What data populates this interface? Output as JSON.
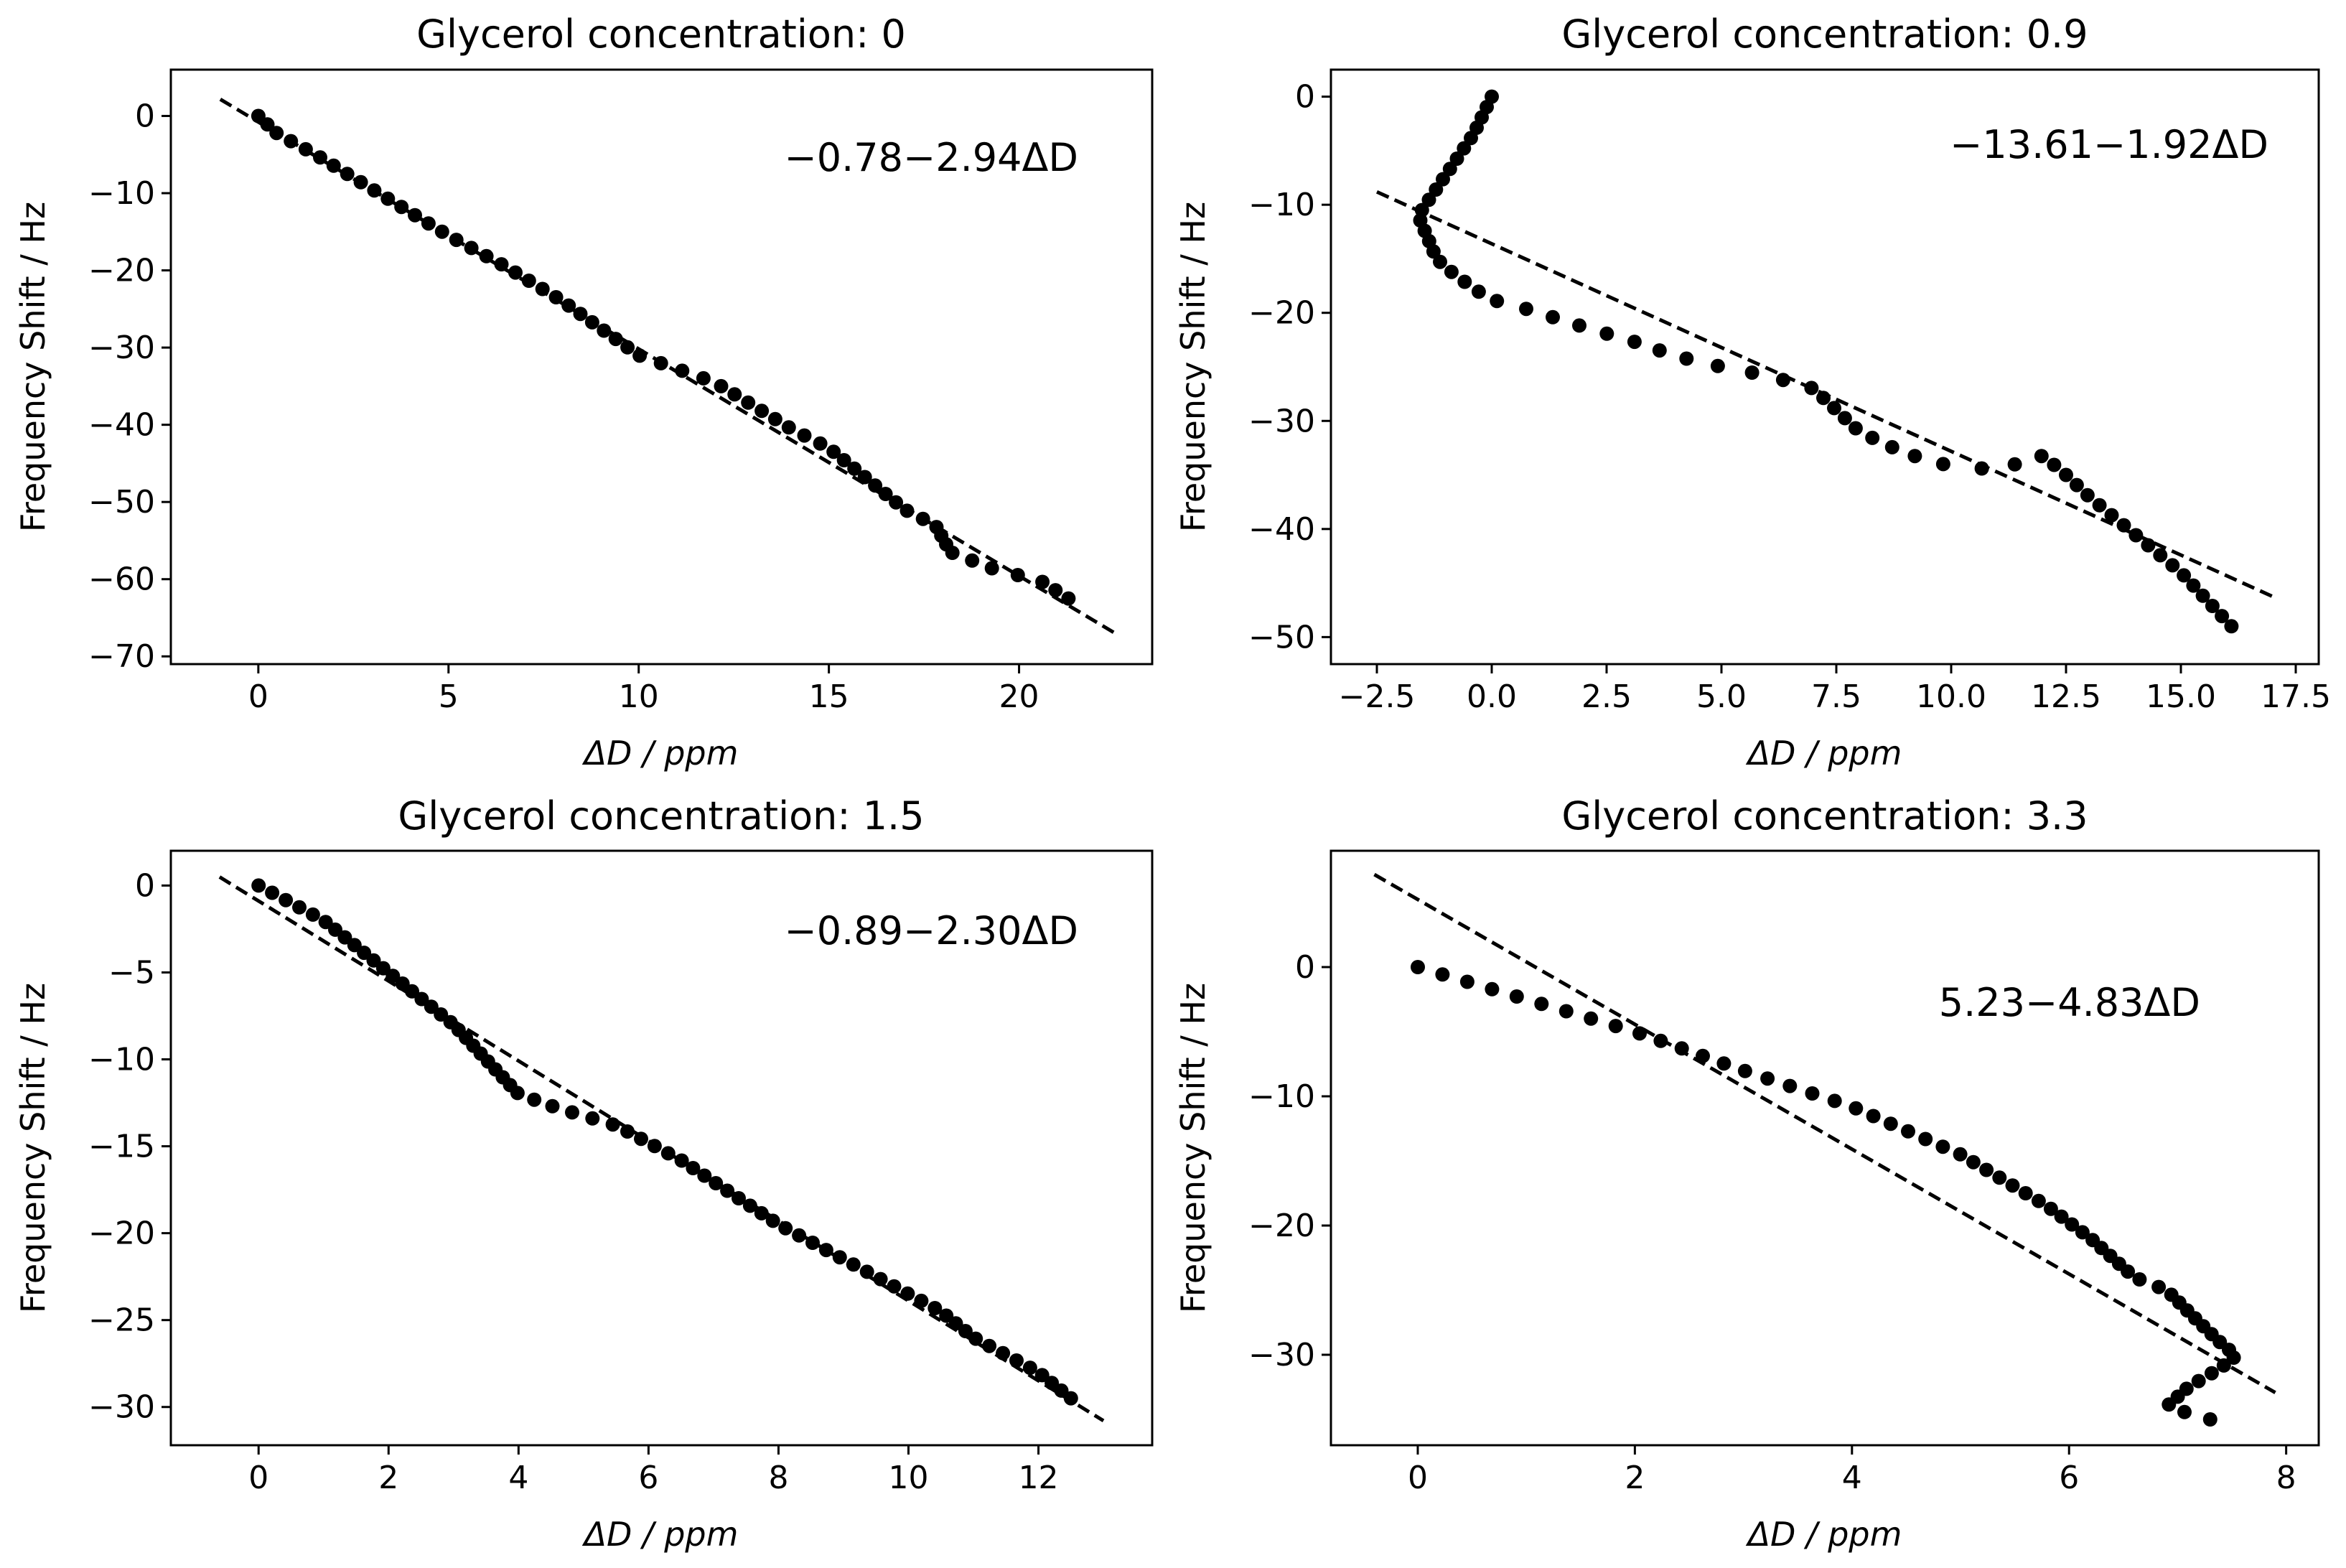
{
  "chart_data": [
    {
      "type": "scatter",
      "title": "Glycerol concentration: 0",
      "xlabel": "ΔD / ppm",
      "ylabel": "Frequency Shift / Hz",
      "annotation": "−0.78−2.94ΔD",
      "annotation_position": "top-right",
      "xlim": [
        -2.3,
        23.5
      ],
      "ylim": [
        -71,
        6
      ],
      "xticks": [
        0,
        5,
        10,
        15,
        20
      ],
      "xtick_labels": [
        "0",
        "5",
        "10",
        "15",
        "20"
      ],
      "yticks": [
        0,
        -10,
        -20,
        -30,
        -40,
        -50,
        -60,
        -70
      ],
      "ytick_labels": [
        "0",
        "−10",
        "−20",
        "−30",
        "−40",
        "−50",
        "−60",
        "−70"
      ],
      "fit": {
        "intercept": -0.78,
        "slope": -2.94,
        "x_range": [
          -1.0,
          22.5
        ]
      },
      "series": [
        {
          "name": "data",
          "anchors": [
            [
              0,
              0
            ],
            [
              0.5,
              -2.3
            ],
            [
              1.5,
              -5
            ],
            [
              2.5,
              -8
            ],
            [
              3.5,
              -11
            ],
            [
              5,
              -15.5
            ],
            [
              6.5,
              -19.5
            ],
            [
              8,
              -24
            ],
            [
              10,
              -31
            ],
            [
              12,
              -34.5
            ],
            [
              14,
              -40.5
            ],
            [
              15,
              -43
            ],
            [
              16,
              -47
            ],
            [
              17,
              -51
            ],
            [
              17.8,
              -53
            ],
            [
              18.2,
              -56.5
            ],
            [
              19.5,
              -59
            ],
            [
              20.5,
              -60
            ],
            [
              21.3,
              -62.5
            ]
          ],
          "count": 60
        }
      ]
    },
    {
      "type": "scatter",
      "title": "Glycerol concentration: 0.9",
      "xlabel": "ΔD / ppm",
      "ylabel": "Frequency Shift / Hz",
      "annotation": "−13.61−1.92ΔD",
      "annotation_position": "top-right",
      "xlim": [
        -3.5,
        18.0
      ],
      "ylim": [
        -52.5,
        2.5
      ],
      "xticks": [
        -2.5,
        0.0,
        2.5,
        5.0,
        7.5,
        10.0,
        12.5,
        15.0,
        17.5
      ],
      "xtick_labels": [
        "−2.5",
        "0.0",
        "2.5",
        "5.0",
        "7.5",
        "10.0",
        "12.5",
        "15.0",
        "17.5"
      ],
      "yticks": [
        0,
        -10,
        -20,
        -30,
        -40,
        -50
      ],
      "ytick_labels": [
        "0",
        "−10",
        "−20",
        "−30",
        "−40",
        "−50"
      ],
      "fit": {
        "intercept": -13.61,
        "slope": -1.92,
        "x_range": [
          -2.5,
          17.0
        ]
      },
      "series": [
        {
          "name": "data",
          "anchors": [
            [
              0,
              0
            ],
            [
              -0.4,
              -3.5
            ],
            [
              -0.8,
              -6
            ],
            [
              -1.2,
              -8.5
            ],
            [
              -1.6,
              -11
            ],
            [
              -1.4,
              -13
            ],
            [
              -1.2,
              -15
            ],
            [
              -0.8,
              -16.5
            ],
            [
              -0.3,
              -18
            ],
            [
              0,
              -18.8
            ],
            [
              0.5,
              -19.3
            ],
            [
              2,
              -21.3
            ],
            [
              3.2,
              -22.8
            ],
            [
              4,
              -24
            ],
            [
              5,
              -25
            ],
            [
              6,
              -25.8
            ],
            [
              7,
              -27
            ],
            [
              8,
              -31
            ],
            [
              9,
              -33
            ],
            [
              10,
              -34.2
            ],
            [
              11,
              -34.5
            ],
            [
              11.8,
              -33.5
            ],
            [
              12.0,
              -33.2
            ],
            [
              12.5,
              -35
            ],
            [
              13,
              -37
            ],
            [
              14,
              -40.5
            ],
            [
              15,
              -44
            ],
            [
              16.1,
              -49
            ]
          ],
          "count": 60
        }
      ]
    },
    {
      "type": "scatter",
      "title": "Glycerol concentration: 1.5",
      "xlabel": "ΔD / ppm",
      "ylabel": "Frequency Shift / Hz",
      "annotation": "−0.89−2.30ΔD",
      "annotation_position": "top-right",
      "xlim": [
        -1.35,
        13.75
      ],
      "ylim": [
        -32.2,
        2.0
      ],
      "xticks": [
        0,
        2,
        4,
        6,
        8,
        10,
        12
      ],
      "xtick_labels": [
        "0",
        "2",
        "4",
        "6",
        "8",
        "10",
        "12"
      ],
      "yticks": [
        0,
        -5,
        -10,
        -15,
        -20,
        -25,
        -30
      ],
      "ytick_labels": [
        "0",
        "−5",
        "−10",
        "−15",
        "−20",
        "−25",
        "−30"
      ],
      "fit": {
        "intercept": -0.89,
        "slope": -2.3,
        "x_range": [
          -0.6,
          13.0
        ]
      },
      "series": [
        {
          "name": "data",
          "anchors": [
            [
              0,
              0
            ],
            [
              1,
              -2
            ],
            [
              2,
              -5
            ],
            [
              3,
              -8
            ],
            [
              4,
              -12
            ],
            [
              4.6,
              -12.8
            ],
            [
              5.5,
              -13.8
            ],
            [
              6.5,
              -15.8
            ],
            [
              8,
              -19.5
            ],
            [
              9.5,
              -22.5
            ],
            [
              10.5,
              -24.5
            ],
            [
              11,
              -26
            ],
            [
              12,
              -28
            ],
            [
              12.5,
              -29.5
            ]
          ],
          "count": 70
        }
      ]
    },
    {
      "type": "scatter",
      "title": "Glycerol concentration: 3.3",
      "xlabel": "ΔD / ppm",
      "ylabel": "Frequency Shift / Hz",
      "annotation": "5.23−4.83ΔD",
      "annotation_position": "top-right",
      "xlim": [
        -0.8,
        8.3
      ],
      "ylim": [
        -37,
        9
      ],
      "xticks": [
        0,
        2,
        4,
        6,
        8
      ],
      "xtick_labels": [
        "0",
        "2",
        "4",
        "6",
        "8"
      ],
      "yticks": [
        0,
        -10,
        -20,
        -30
      ],
      "ytick_labels": [
        "0",
        "−10",
        "−20",
        "−30"
      ],
      "fit": {
        "intercept": 5.23,
        "slope": -4.83,
        "x_range": [
          -0.4,
          7.9
        ]
      },
      "series": [
        {
          "name": "data",
          "anchors": [
            [
              0,
              0
            ],
            [
              1,
              -2.5
            ],
            [
              2,
              -5
            ],
            [
              3,
              -8
            ],
            [
              4,
              -10.8
            ],
            [
              5,
              -14.5
            ],
            [
              5.8,
              -18.5
            ],
            [
              6.2,
              -21
            ],
            [
              6.6,
              -24
            ],
            [
              6.9,
              -25
            ],
            [
              7.2,
              -27.5
            ],
            [
              7.45,
              -29.5
            ],
            [
              7.55,
              -30
            ],
            [
              7.4,
              -31
            ],
            [
              7.1,
              -32.5
            ],
            [
              6.9,
              -34
            ],
            [
              7.2,
              -34.8
            ],
            [
              7.3,
              -35
            ]
          ],
          "count": 60
        }
      ]
    }
  ]
}
